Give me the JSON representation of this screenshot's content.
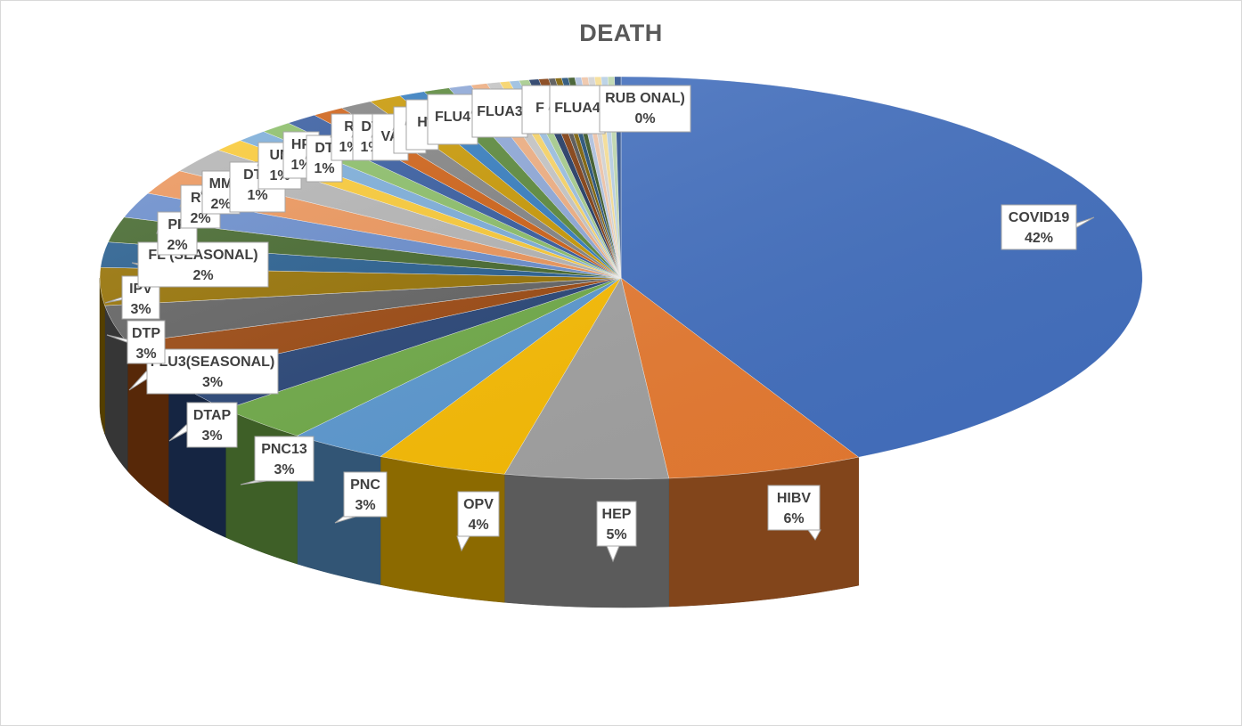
{
  "chart_data": {
    "type": "pie",
    "title": "DEATH",
    "slices": [
      {
        "label": "COVID19",
        "value": 42,
        "pct": "42%",
        "color": "#4472C4"
      },
      {
        "label": "HIBV",
        "value": 6,
        "pct": "6%",
        "color": "#ED7D31"
      },
      {
        "label": "HEP",
        "value": 5,
        "pct": "5%",
        "color": "#A5A5A5"
      },
      {
        "label": "OPV",
        "value": 4,
        "pct": "4%",
        "color": "#FFC000"
      },
      {
        "label": "PNC",
        "value": 3,
        "pct": "3%",
        "color": "#5B9BD5"
      },
      {
        "label": "PNC13",
        "value": 3,
        "pct": "3%",
        "color": "#70AD47"
      },
      {
        "label": "DTAP",
        "value": 3,
        "pct": "3%",
        "color": "#264478"
      },
      {
        "label": "FLU3(SEASONAL)",
        "value": 3,
        "pct": "3%",
        "color": "#9E480E"
      },
      {
        "label": "DTP",
        "value": 3,
        "pct": "3%",
        "color": "#636363"
      },
      {
        "label": "IPV",
        "value": 3,
        "pct": "3%",
        "color": "#997300"
      },
      {
        "label": "FLU(SEASONAL)",
        "value": 2,
        "pct": "2%",
        "color": "#255E91"
      },
      {
        "label": "",
        "value": 2,
        "pct": "2%",
        "color": "#43682B"
      },
      {
        "label": "PP",
        "value": 2,
        "pct": "2%",
        "color": "#698ED0"
      },
      {
        "label": "RV",
        "value": 2,
        "pct": "2%",
        "color": "#F1975A"
      },
      {
        "label": "MM",
        "value": 2,
        "pct": "2%",
        "color": "#B7B7B7"
      },
      {
        "label": "DTA",
        "value": 1,
        "pct": "1%",
        "color": "#FFCD33"
      },
      {
        "label": "UN",
        "value": 1,
        "pct": "1%",
        "color": "#7CAFDD"
      },
      {
        "label": "HP",
        "value": 1,
        "pct": "1%",
        "color": "#8CC168"
      },
      {
        "label": "DT",
        "value": 1,
        "pct": "1%",
        "color": "#335AA1"
      },
      {
        "label": "R",
        "value": 1,
        "pct": "1%",
        "color": "#D26012"
      },
      {
        "label": "DT",
        "value": 1,
        "pct": "1%",
        "color": "#848484"
      },
      {
        "label": "VA",
        "value": 1,
        "pct": "",
        "color": "#CC9A00"
      },
      {
        "label": "6",
        "value": 0.8,
        "pct": "",
        "color": "#327DC2"
      },
      {
        "label": "H",
        "value": 0.8,
        "pct": "",
        "color": "#5A8A39"
      },
      {
        "label": "FLU4",
        "value": 0.7,
        "pct": "",
        "color": "#8FAADC"
      },
      {
        "label": "FLUA3",
        "value": 0.5,
        "pct": "",
        "color": "#F4B183"
      },
      {
        "label": "F",
        "value": 0.4,
        "pct": "",
        "color": "#C9C9C9"
      },
      {
        "label": "FLUA4",
        "value": 0.3,
        "pct": "",
        "color": "#FFD966"
      },
      {
        "label": "",
        "value": 0.3,
        "pct": "",
        "color": "#9DC3E6"
      },
      {
        "label": "",
        "value": 0.3,
        "pct": "",
        "color": "#A9D18E"
      },
      {
        "label": "",
        "value": 0.3,
        "pct": "",
        "color": "#1F3864"
      },
      {
        "label": "",
        "value": 0.3,
        "pct": "",
        "color": "#843C0C"
      },
      {
        "label": "",
        "value": 0.2,
        "pct": "",
        "color": "#525252"
      },
      {
        "label": "",
        "value": 0.2,
        "pct": "",
        "color": "#7F6000"
      },
      {
        "label": "",
        "value": 0.2,
        "pct": "",
        "color": "#1F4E79"
      },
      {
        "label": "",
        "value": 0.2,
        "pct": "",
        "color": "#385723"
      },
      {
        "label": "",
        "value": 0.2,
        "pct": "",
        "color": "#B4C7E7"
      },
      {
        "label": "",
        "value": 0.2,
        "pct": "",
        "color": "#F8CBAD"
      },
      {
        "label": "",
        "value": 0.2,
        "pct": "",
        "color": "#DBDBDB"
      },
      {
        "label": "",
        "value": 0.2,
        "pct": "",
        "color": "#FFE699"
      },
      {
        "label": "",
        "value": 0.2,
        "pct": "",
        "color": "#BDD7EE"
      },
      {
        "label": "",
        "value": 0.2,
        "pct": "",
        "color": "#C5E0B4"
      },
      {
        "label": "RUB",
        "value": 0.2,
        "pct": "0%",
        "color": "#2F5597"
      }
    ],
    "labels_overlapping": [
      {
        "label": "FL",
        "text2": "(SEASONAL)"
      },
      {
        "label": "",
        "text2": "ONAL)"
      }
    ]
  }
}
